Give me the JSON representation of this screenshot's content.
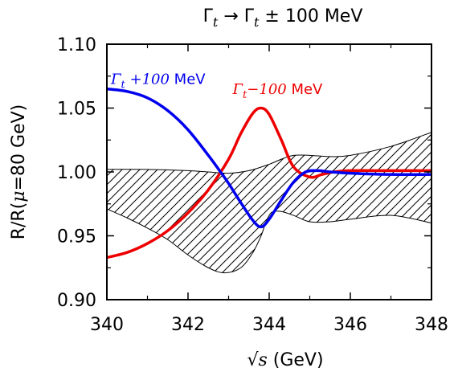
{
  "chart_data": {
    "type": "line",
    "title": "Γt → Γt ± 100 MeV",
    "title_parts": {
      "g1": "Γ",
      "s1": "t",
      "arrow": " → ",
      "g2": "Γ",
      "s2": "t",
      "tail": " ± 100 MeV"
    },
    "xlabel": "√s (GeV)",
    "xlabel_parts": {
      "root": "√",
      "var": "s",
      "unit": " (GeV)"
    },
    "ylabel": "R/R(μ=80 GeV)",
    "ylabel_parts": {
      "a": "R/R(",
      "mu": "μ",
      "b": "=80 GeV)"
    },
    "xlim": [
      340,
      348
    ],
    "ylim": [
      0.9,
      1.1
    ],
    "x_ticks": [
      340,
      342,
      344,
      346,
      348
    ],
    "x_tick_labels": [
      "340",
      "342",
      "344",
      "346",
      "348"
    ],
    "y_ticks": [
      0.9,
      0.95,
      1.0,
      1.05,
      1.1
    ],
    "y_tick_labels": [
      "0.90",
      "0.95",
      "1.00",
      "1.05",
      "1.10"
    ],
    "grid": false,
    "annotations": [
      {
        "series": "plus",
        "g": "Γ",
        "sub": "t",
        "op": " +100",
        "unit": " MeV",
        "color": "#0000ee",
        "at": [
          340.1,
          1.069
        ]
      },
      {
        "series": "minus",
        "g": "Γ",
        "sub": "t",
        "op": "−100",
        "unit": " MeV",
        "color": "#ee0000",
        "at": [
          343.1,
          1.061
        ]
      }
    ],
    "series": [
      {
        "id": "plus",
        "color": "#0000ee",
        "x": [
          340,
          340.5,
          341,
          341.5,
          342,
          342.5,
          342.8,
          343,
          343.3,
          343.6,
          343.8,
          344,
          344.3,
          344.6,
          344.9,
          345.2,
          345.5,
          346,
          347,
          348
        ],
        "y": [
          1.065,
          1.063,
          1.058,
          1.048,
          1.033,
          1.013,
          1.0,
          0.991,
          0.976,
          0.962,
          0.957,
          0.963,
          0.978,
          0.992,
          1.0,
          1.001,
          1.0,
          0.999,
          0.998,
          0.998
        ]
      },
      {
        "id": "minus",
        "color": "#ee0000",
        "x": [
          340,
          340.5,
          341,
          341.5,
          342,
          342.5,
          343,
          343.3,
          343.6,
          343.8,
          344,
          344.3,
          344.6,
          345,
          345.3,
          345.6,
          346,
          347,
          348
        ],
        "y": [
          0.933,
          0.937,
          0.944,
          0.954,
          0.968,
          0.986,
          1.01,
          1.03,
          1.046,
          1.05,
          1.045,
          1.025,
          1.004,
          0.996,
          0.998,
          1.0,
          1.001,
          1.001,
          1.001
        ]
      }
    ],
    "band": {
      "upper": {
        "x": [
          340,
          341,
          342,
          342.5,
          343,
          343.5,
          344,
          344.3,
          344.6,
          345,
          345.5,
          346,
          347,
          348
        ],
        "y": [
          1.002,
          1.002,
          1.001,
          1.0,
          0.999,
          1.001,
          1.006,
          1.01,
          1.013,
          1.013,
          1.012,
          1.013,
          1.02,
          1.031
        ]
      },
      "lower": {
        "x": [
          340,
          340.5,
          341,
          341.5,
          342,
          342.5,
          342.9,
          343.3,
          343.6,
          343.8,
          343.9,
          344,
          344.1,
          344.3,
          344.6,
          345,
          345.5,
          346,
          347,
          348
        ],
        "y": [
          0.971,
          0.964,
          0.956,
          0.947,
          0.935,
          0.925,
          0.921,
          0.925,
          0.937,
          0.95,
          0.959,
          0.966,
          0.969,
          0.969,
          0.966,
          0.961,
          0.961,
          0.963,
          0.966,
          0.96
        ]
      }
    }
  }
}
